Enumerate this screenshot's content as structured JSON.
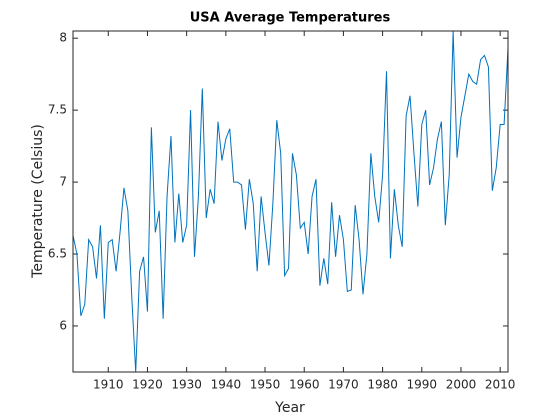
{
  "chart_data": {
    "type": "line",
    "title": "USA Average Temperatures",
    "xlabel": "Year",
    "ylabel": "Temperature (Celsius)",
    "x": [
      1901,
      1902,
      1903,
      1904,
      1905,
      1906,
      1907,
      1908,
      1909,
      1910,
      1911,
      1912,
      1913,
      1914,
      1915,
      1916,
      1917,
      1918,
      1919,
      1920,
      1921,
      1922,
      1923,
      1924,
      1925,
      1926,
      1927,
      1928,
      1929,
      1930,
      1931,
      1932,
      1933,
      1934,
      1935,
      1936,
      1937,
      1938,
      1939,
      1940,
      1941,
      1942,
      1943,
      1944,
      1945,
      1946,
      1947,
      1948,
      1949,
      1950,
      1951,
      1952,
      1953,
      1954,
      1955,
      1956,
      1957,
      1958,
      1959,
      1960,
      1961,
      1962,
      1963,
      1964,
      1965,
      1966,
      1967,
      1968,
      1969,
      1970,
      1971,
      1972,
      1973,
      1974,
      1975,
      1976,
      1977,
      1978,
      1979,
      1980,
      1981,
      1982,
      1983,
      1984,
      1985,
      1986,
      1987,
      1988,
      1989,
      1990,
      1991,
      1992,
      1993,
      1994,
      1995,
      1996,
      1997,
      1998,
      1999,
      2000,
      2001,
      2002,
      2003,
      2004,
      2005,
      2006,
      2007,
      2008,
      2009,
      2010,
      2011,
      2012
    ],
    "values": [
      6.63,
      6.5,
      6.07,
      6.15,
      6.6,
      6.55,
      6.33,
      6.7,
      6.05,
      6.58,
      6.6,
      6.38,
      6.65,
      6.96,
      6.8,
      6.2,
      5.68,
      6.38,
      6.48,
      6.1,
      7.38,
      6.65,
      6.8,
      6.05,
      6.9,
      7.32,
      6.58,
      6.92,
      6.58,
      6.7,
      7.5,
      6.48,
      6.9,
      7.65,
      6.75,
      6.95,
      6.85,
      7.42,
      7.15,
      7.3,
      7.37,
      7.0,
      7.0,
      6.98,
      6.67,
      7.02,
      6.85,
      6.38,
      6.9,
      6.65,
      6.42,
      6.85,
      7.43,
      7.2,
      6.35,
      6.4,
      7.2,
      7.05,
      6.68,
      6.72,
      6.5,
      6.9,
      7.02,
      6.28,
      6.47,
      6.29,
      6.86,
      6.48,
      6.77,
      6.6,
      6.24,
      6.25,
      6.84,
      6.6,
      6.22,
      6.5,
      7.2,
      6.9,
      6.72,
      7.05,
      7.77,
      6.47,
      6.95,
      6.7,
      6.55,
      7.46,
      7.6,
      7.2,
      6.83,
      7.4,
      7.5,
      6.98,
      7.1,
      7.3,
      7.42,
      6.7,
      7.05,
      8.05,
      7.17,
      7.45,
      7.6,
      7.75,
      7.7,
      7.68,
      7.85,
      7.88,
      7.8,
      6.94,
      7.1,
      7.4,
      7.4,
      7.93
    ],
    "color": "#0072bd",
    "xlim": [
      1901,
      2012
    ],
    "ylim": [
      5.68,
      8.05
    ],
    "xticks": [
      1910,
      1920,
      1930,
      1940,
      1950,
      1960,
      1970,
      1980,
      1990,
      2000,
      2010
    ],
    "yticks": [
      6,
      6.5,
      7,
      7.5,
      8
    ]
  }
}
